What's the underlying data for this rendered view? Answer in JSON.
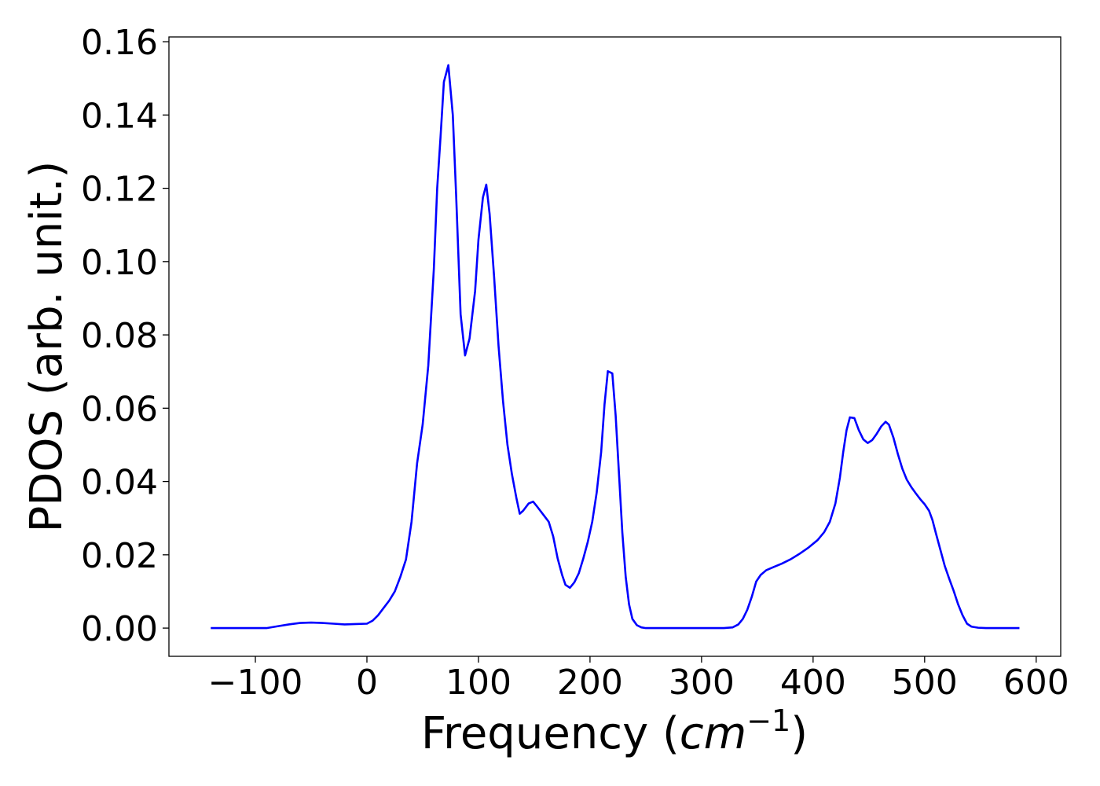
{
  "chart_data": {
    "type": "line",
    "xlabel": [
      "Frequency (",
      "cm",
      "−1",
      ")"
    ],
    "ylabel": "PDOS (arb. unit.)",
    "color": "#0000ff",
    "xlim": [
      -177.5,
      622
    ],
    "ylim": [
      -0.0077,
      0.1613
    ],
    "xticks": [
      {
        "value": -100,
        "label": "−100"
      },
      0,
      100,
      200,
      300,
      400,
      500,
      600
    ],
    "yticks": [
      {
        "value": 0,
        "label": "0.00"
      },
      {
        "value": 0.02,
        "label": "0.02"
      },
      {
        "value": 0.04,
        "label": "0.04"
      },
      {
        "value": 0.06,
        "label": "0.06"
      },
      {
        "value": 0.08,
        "label": "0.08"
      },
      {
        "value": 0.1,
        "label": "0.10"
      },
      {
        "value": 0.12,
        "label": "0.12"
      },
      {
        "value": 0.14,
        "label": "0.14"
      },
      {
        "value": 0.16,
        "label": "0.16"
      }
    ],
    "x": [
      -140,
      -90,
      -80,
      -70,
      -60,
      -50,
      -40,
      -30,
      -20,
      -10,
      0,
      5,
      10,
      15,
      20,
      25,
      30,
      35,
      40,
      45,
      50,
      55,
      60,
      63,
      66,
      69,
      73,
      77,
      80,
      84,
      88,
      92,
      97,
      100,
      104,
      107,
      110,
      114,
      118,
      122,
      126,
      130,
      134,
      137,
      140,
      145,
      149,
      153,
      158,
      163,
      167,
      171,
      175,
      178,
      182,
      186,
      190,
      194,
      198,
      202,
      206,
      210,
      213,
      216,
      220,
      223,
      226,
      229,
      232,
      235,
      238,
      242,
      246,
      250,
      320,
      328,
      333,
      337,
      341,
      345,
      349,
      353,
      358,
      365,
      372,
      380,
      388,
      396,
      404,
      410,
      415,
      420,
      424,
      427,
      430,
      433,
      437,
      441,
      445,
      449,
      453,
      457,
      461,
      465,
      468,
      472,
      476,
      480,
      484,
      488,
      492,
      496,
      500,
      504,
      507,
      510,
      514,
      518,
      522,
      526,
      530,
      534,
      538,
      542,
      548,
      555,
      585
    ],
    "values": [
      0,
      0,
      0.0005,
      0.001,
      0.0014,
      0.0015,
      0.0014,
      0.0012,
      0.001,
      0.0011,
      0.0012,
      0.002,
      0.0035,
      0.0055,
      0.0075,
      0.01,
      0.014,
      0.0187,
      0.029,
      0.045,
      0.0556,
      0.0716,
      0.098,
      0.12,
      0.134,
      0.149,
      0.1536,
      0.14,
      0.118,
      0.0856,
      0.0744,
      0.079,
      0.092,
      0.106,
      0.1175,
      0.121,
      0.113,
      0.096,
      0.077,
      0.062,
      0.05,
      0.042,
      0.0355,
      0.0312,
      0.032,
      0.034,
      0.0345,
      0.033,
      0.031,
      0.029,
      0.025,
      0.019,
      0.0145,
      0.0118,
      0.011,
      0.0125,
      0.015,
      0.019,
      0.0235,
      0.029,
      0.037,
      0.048,
      0.061,
      0.0701,
      0.0695,
      0.058,
      0.042,
      0.026,
      0.014,
      0.0065,
      0.0025,
      0.0008,
      0.0002,
      0,
      0,
      0.0002,
      0.001,
      0.0025,
      0.005,
      0.0085,
      0.0127,
      0.0145,
      0.0158,
      0.0167,
      0.0176,
      0.0188,
      0.0203,
      0.022,
      0.024,
      0.0262,
      0.029,
      0.034,
      0.041,
      0.048,
      0.054,
      0.0575,
      0.0573,
      0.054,
      0.0515,
      0.0505,
      0.0513,
      0.053,
      0.055,
      0.0563,
      0.0555,
      0.052,
      0.0475,
      0.0435,
      0.0405,
      0.0385,
      0.0368,
      0.0352,
      0.0338,
      0.032,
      0.0295,
      0.026,
      0.0215,
      0.017,
      0.0135,
      0.0102,
      0.0065,
      0.0035,
      0.0012,
      0.0004,
      0.0001,
      0,
      0
    ]
  }
}
